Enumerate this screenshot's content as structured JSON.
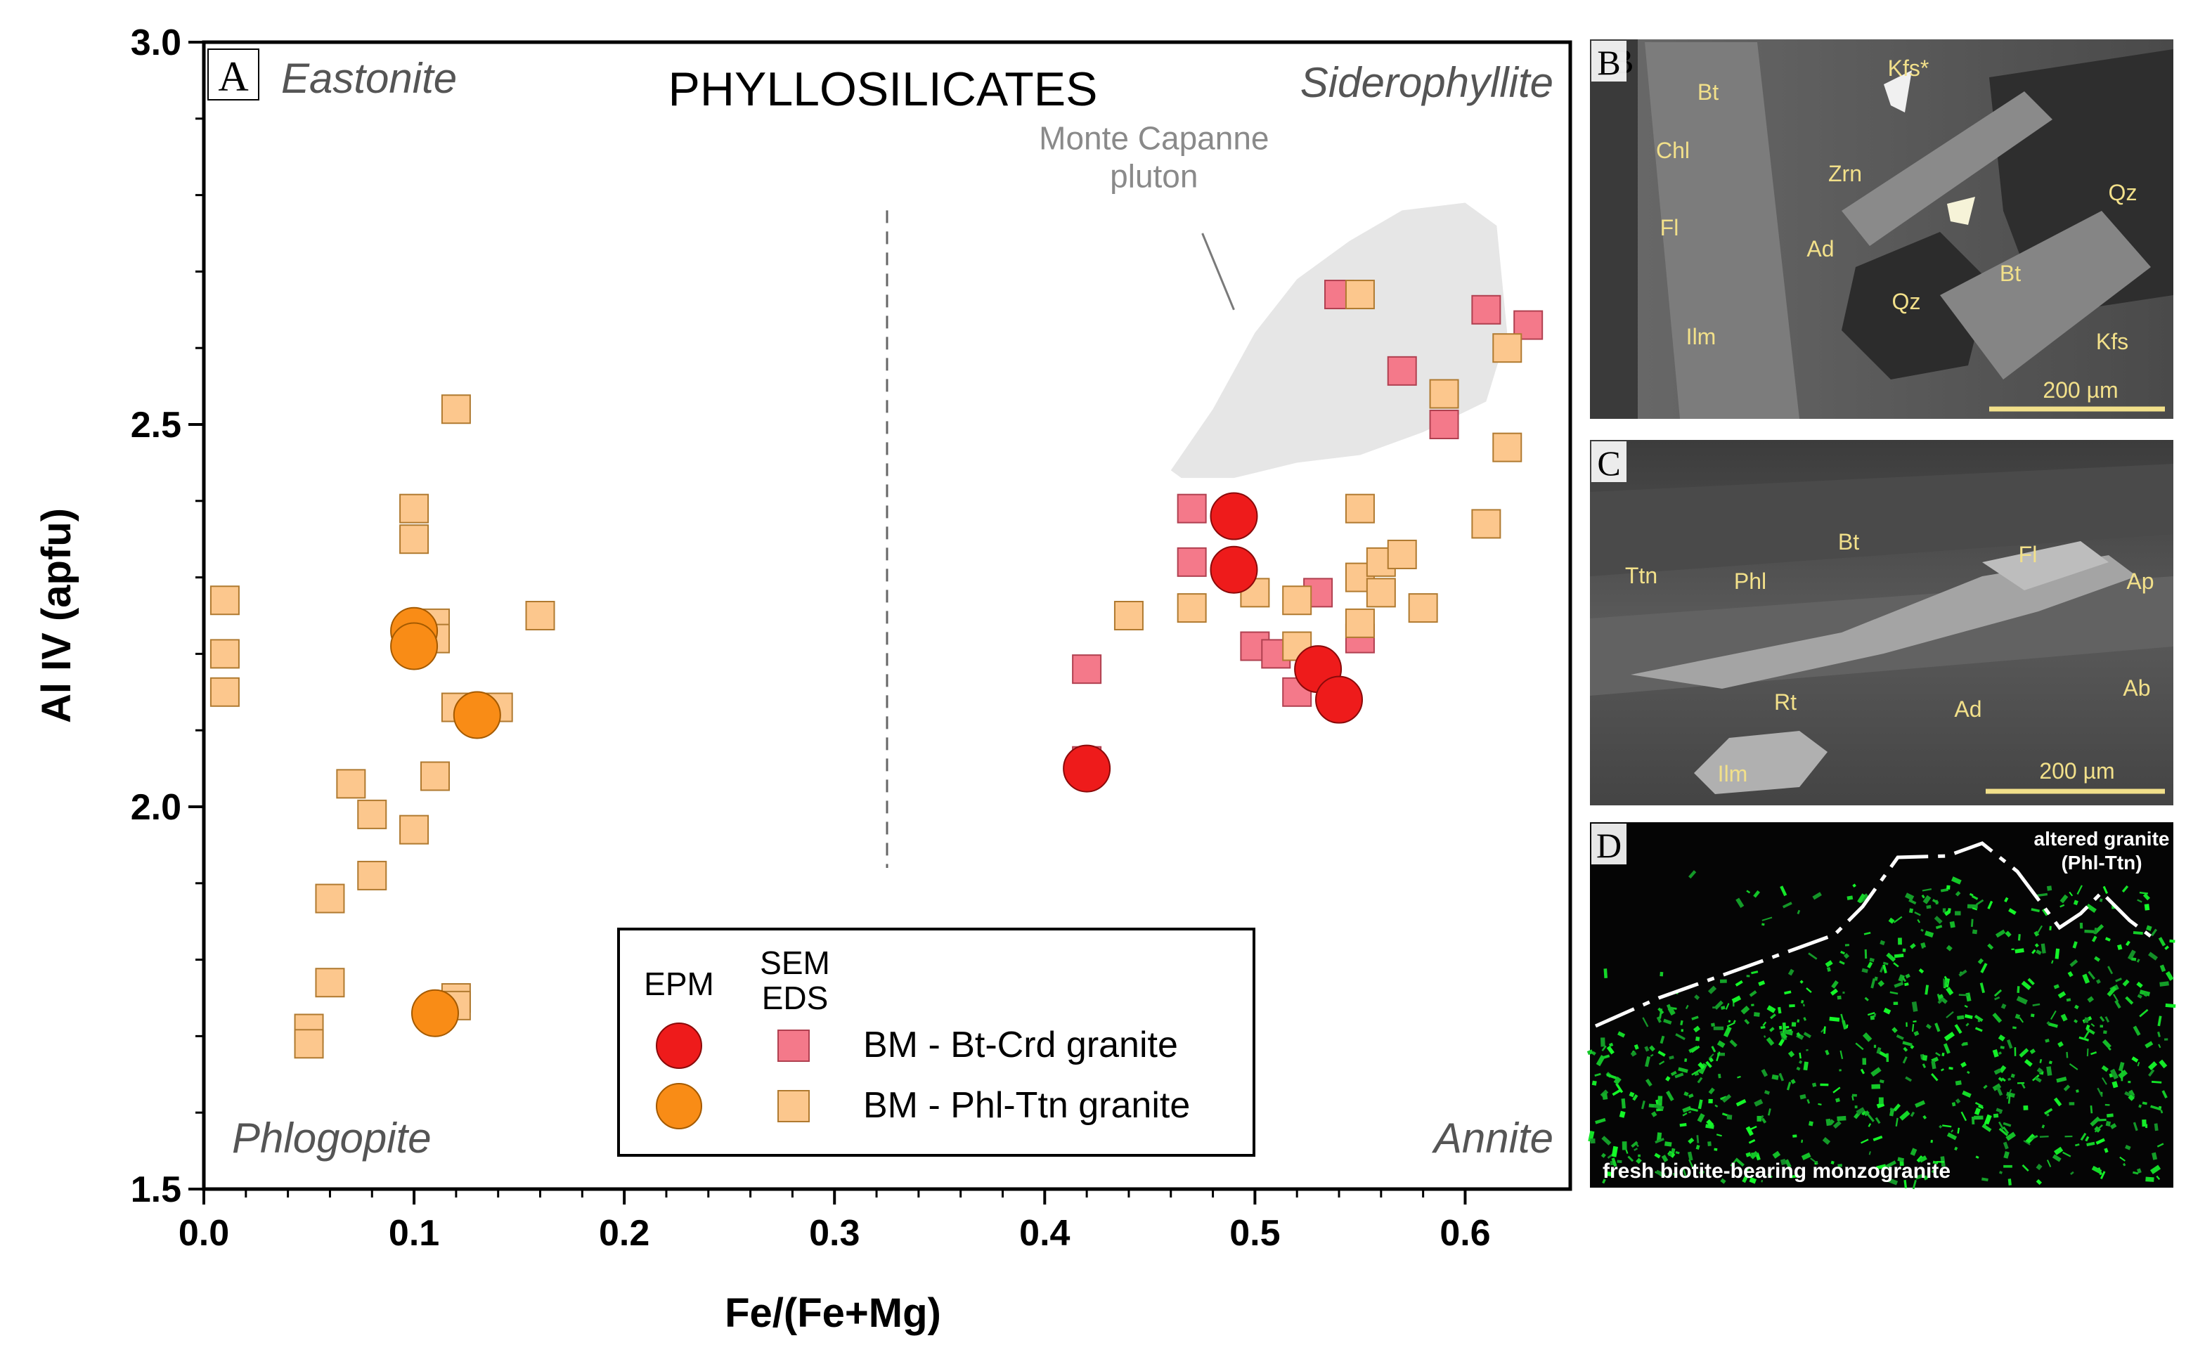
{
  "chart_data": {
    "type": "scatter",
    "title": "PHYLLOSILICATES",
    "panel_label": "A",
    "xlabel": "Fe/(Fe+Mg)",
    "ylabel": "Al IV (apfu)",
    "xlim": [
      0.0,
      0.65
    ],
    "ylim": [
      1.5,
      3.0
    ],
    "x_ticks": [
      "0.0",
      "0.1",
      "0.2",
      "0.3",
      "0.4",
      "0.5",
      "0.6"
    ],
    "y_ticks": [
      "1.5",
      "2.0",
      "2.5",
      "3.0"
    ],
    "corner_labels": {
      "top_left": "Eastonite",
      "top_right": "Siderophyllite",
      "bottom_left": "Phlogopite",
      "bottom_right": "Annite"
    },
    "divider_x": 0.325,
    "divider_y_range": [
      1.92,
      2.78
    ],
    "field": {
      "label_line1": "Monte Capanne",
      "label_line2": "pluton",
      "polygon": [
        [
          0.46,
          2.44
        ],
        [
          0.48,
          2.52
        ],
        [
          0.5,
          2.62
        ],
        [
          0.52,
          2.69
        ],
        [
          0.545,
          2.74
        ],
        [
          0.57,
          2.78
        ],
        [
          0.6,
          2.79
        ],
        [
          0.615,
          2.76
        ],
        [
          0.62,
          2.62
        ],
        [
          0.61,
          2.53
        ],
        [
          0.58,
          2.49
        ],
        [
          0.55,
          2.46
        ],
        [
          0.52,
          2.45
        ],
        [
          0.49,
          2.43
        ],
        [
          0.465,
          2.43
        ]
      ],
      "color": "#e6e6e6",
      "pointer_from": [
        0.475,
        2.75
      ],
      "pointer_to": [
        0.49,
        2.65
      ]
    },
    "legend": {
      "header_epm": "EPM",
      "header_sem_line1": "SEM",
      "header_sem_line2": "EDS",
      "entries": [
        "BM - Bt-Crd granite",
        "BM - Phl-Ttn granite"
      ]
    },
    "series": [
      {
        "name": "BM - Bt-Crd granite (SEM-EDS)",
        "marker": "square",
        "color": "#f4798a",
        "points": [
          [
            0.42,
            2.06
          ],
          [
            0.42,
            2.18
          ],
          [
            0.47,
            2.39
          ],
          [
            0.47,
            2.32
          ],
          [
            0.5,
            2.21
          ],
          [
            0.51,
            2.2
          ],
          [
            0.52,
            2.15
          ],
          [
            0.53,
            2.28
          ],
          [
            0.54,
            2.67
          ],
          [
            0.57,
            2.57
          ],
          [
            0.59,
            2.5
          ],
          [
            0.61,
            2.65
          ],
          [
            0.63,
            2.63
          ],
          [
            0.55,
            2.22
          ]
        ]
      },
      {
        "name": "BM - Phl-Ttn granite (SEM-EDS)",
        "marker": "square",
        "color": "#fcc78d",
        "points": [
          [
            0.01,
            2.27
          ],
          [
            0.01,
            2.2
          ],
          [
            0.01,
            2.15
          ],
          [
            0.05,
            1.71
          ],
          [
            0.05,
            1.69
          ],
          [
            0.06,
            1.77
          ],
          [
            0.06,
            1.88
          ],
          [
            0.07,
            2.03
          ],
          [
            0.08,
            1.99
          ],
          [
            0.08,
            1.91
          ],
          [
            0.1,
            2.39
          ],
          [
            0.1,
            2.35
          ],
          [
            0.1,
            1.97
          ],
          [
            0.11,
            2.24
          ],
          [
            0.11,
            2.22
          ],
          [
            0.11,
            2.04
          ],
          [
            0.12,
            2.52
          ],
          [
            0.12,
            2.13
          ],
          [
            0.12,
            1.75
          ],
          [
            0.12,
            1.74
          ],
          [
            0.14,
            2.13
          ],
          [
            0.16,
            2.25
          ],
          [
            0.44,
            2.25
          ],
          [
            0.47,
            2.26
          ],
          [
            0.5,
            2.28
          ],
          [
            0.52,
            2.21
          ],
          [
            0.52,
            2.27
          ],
          [
            0.55,
            2.67
          ],
          [
            0.55,
            2.39
          ],
          [
            0.55,
            2.3
          ],
          [
            0.55,
            2.24
          ],
          [
            0.56,
            2.32
          ],
          [
            0.56,
            2.28
          ],
          [
            0.57,
            2.33
          ],
          [
            0.58,
            2.26
          ],
          [
            0.59,
            2.54
          ],
          [
            0.61,
            2.37
          ],
          [
            0.62,
            2.6
          ],
          [
            0.62,
            2.47
          ]
        ]
      },
      {
        "name": "BM - Bt-Crd granite (EPM)",
        "marker": "circle",
        "color": "#ee1b1b",
        "points": [
          [
            0.42,
            2.05
          ],
          [
            0.49,
            2.38
          ],
          [
            0.49,
            2.31
          ],
          [
            0.53,
            2.18
          ],
          [
            0.54,
            2.14
          ]
        ]
      },
      {
        "name": "BM - Phl-Ttn granite (EPM)",
        "marker": "circle",
        "color": "#f98c16",
        "points": [
          [
            0.1,
            2.23
          ],
          [
            0.1,
            2.21
          ],
          [
            0.13,
            2.12
          ],
          [
            0.11,
            1.73
          ]
        ]
      }
    ]
  },
  "panels": {
    "B": {
      "label": "B",
      "labels": [
        "Bt",
        "Kfs*",
        "Chl",
        "Zrn",
        "Qz",
        "Fl",
        "Ad",
        "Bt",
        "Qz",
        "Ilm",
        "Kfs"
      ],
      "scale": "200 µm"
    },
    "C": {
      "label": "C",
      "labels": [
        "Bt",
        "Ttn",
        "Phl",
        "Fl",
        "Ap",
        "Rt",
        "Ad",
        "Ab",
        "Ilm"
      ],
      "scale": "200 µm"
    },
    "D": {
      "label": "D",
      "top_label_line1": "altered granite",
      "top_label_line2": "(Phl-Ttn)",
      "bottom_label": "fresh biotite-bearing monzogranite"
    }
  },
  "colors": {
    "sem_label": "#f2e08a",
    "green_fluor": "#1fd63a"
  }
}
